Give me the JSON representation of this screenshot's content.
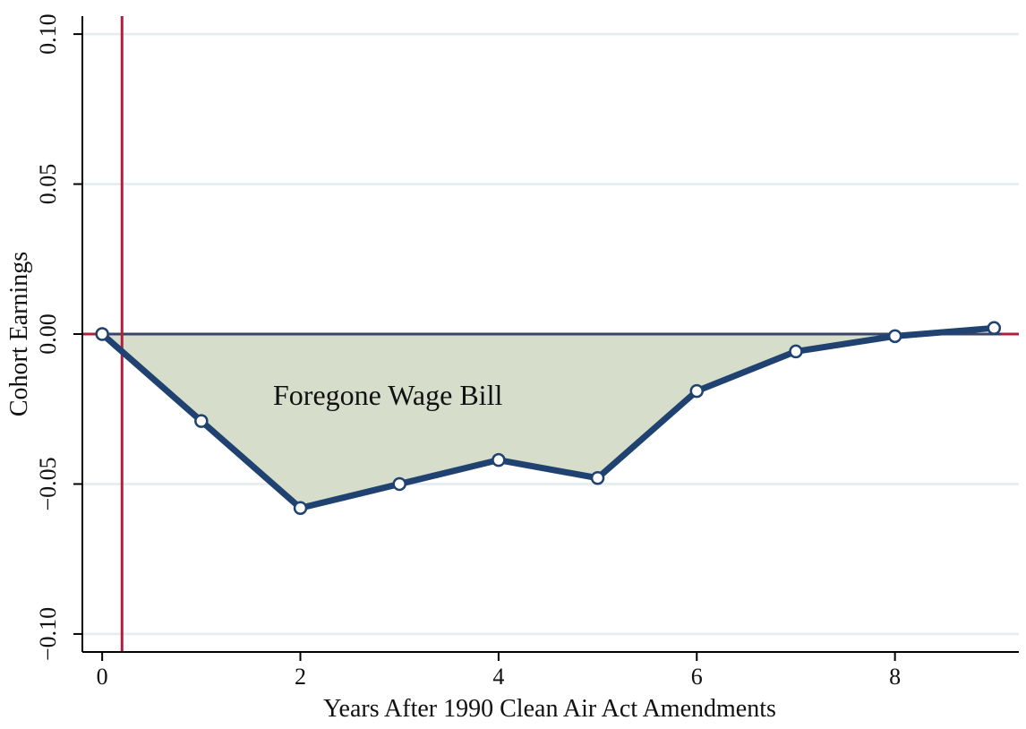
{
  "chart_data": {
    "type": "line",
    "title": "",
    "xlabel": "Years After 1990 Clean Air Act Amendments",
    "ylabel": "Cohort Earnings",
    "xlim": [
      -0.2,
      9.25
    ],
    "ylim": [
      -0.106,
      0.106
    ],
    "x_ticks": [
      0,
      2,
      4,
      6,
      8
    ],
    "x_tick_labels": [
      "0",
      "2",
      "4",
      "6",
      "8"
    ],
    "y_ticks": [
      0.1,
      0.05,
      0.0,
      -0.05,
      -0.1
    ],
    "y_tick_labels": [
      "0.10",
      "0.05",
      "0.00",
      "−0.05",
      "−0.10"
    ],
    "grid": true,
    "series": [
      {
        "x": [
          0,
          1,
          2,
          3,
          4,
          5,
          6,
          7,
          8,
          9
        ],
        "values": [
          0.0,
          -0.029,
          -0.058,
          -0.05,
          -0.042,
          -0.048,
          -0.019,
          -0.0058,
          -0.0007,
          0.002
        ]
      }
    ],
    "reference_lines": {
      "vertical_x": 0.2,
      "horizontal_y": 0
    },
    "shaded_area": {
      "label": "Foregone Wage Bill",
      "between": "series and y = 0",
      "x_range": [
        0,
        8
      ]
    },
    "colors": {
      "line": "#1f4270",
      "marker_fill": "#ffffff",
      "shade": "#d6ddcb",
      "reference": "#b01f3e",
      "zero_line": "#3a4467",
      "grid": "#e3ecee",
      "axis": "#000000"
    }
  }
}
